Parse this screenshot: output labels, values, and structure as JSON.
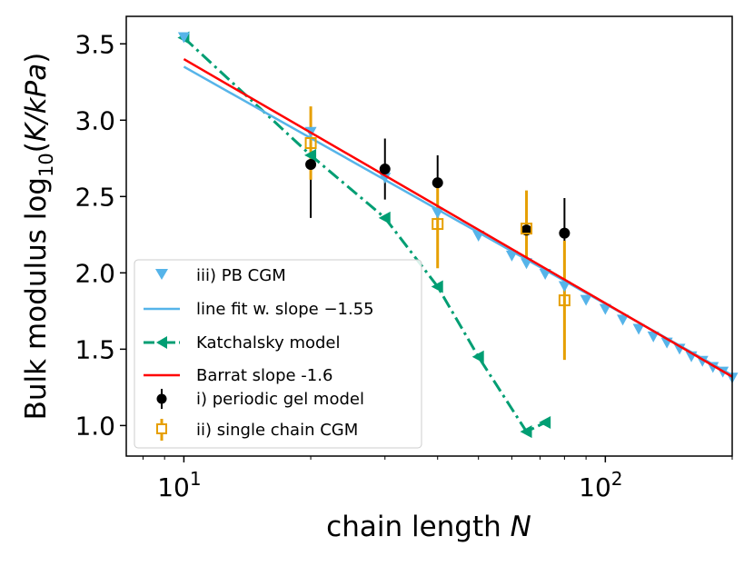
{
  "chart_data": {
    "type": "line",
    "title": "",
    "xlabel": {
      "prefix": "chain length ",
      "var": "N"
    },
    "ylabel": {
      "prefix": "Bulk modulus log",
      "sub": "10",
      "open": "(",
      "var": "K/kPa",
      "close": ")"
    },
    "xscale": "log",
    "xlim": [
      7.3,
      200
    ],
    "ylim": [
      0.8,
      3.68
    ],
    "xticks": [
      {
        "value": 10,
        "base": "10",
        "exp": "1"
      },
      {
        "value": 100,
        "base": "10",
        "exp": "2"
      }
    ],
    "yticks": [
      {
        "value": 1.0,
        "label": "1.0"
      },
      {
        "value": 1.5,
        "label": "1.5"
      },
      {
        "value": 2.0,
        "label": "2.0"
      },
      {
        "value": 2.5,
        "label": "2.5"
      },
      {
        "value": 3.0,
        "label": "3.0"
      },
      {
        "value": 3.5,
        "label": "3.5"
      }
    ],
    "legend_position": "lower-left",
    "series": [
      {
        "id": "pb",
        "name": "iii) PB CGM",
        "kind": "markers",
        "color": "#56B4E9",
        "marker": "triangle-down",
        "x": [
          10,
          20,
          30,
          40,
          50,
          60,
          65,
          72,
          80,
          90,
          100,
          110,
          120,
          130,
          140,
          150,
          160,
          170,
          180,
          190,
          200
        ],
        "y": [
          3.54,
          2.92,
          2.62,
          2.39,
          2.24,
          2.11,
          2.06,
          1.99,
          1.91,
          1.82,
          1.76,
          1.69,
          1.63,
          1.58,
          1.54,
          1.5,
          1.45,
          1.42,
          1.38,
          1.35,
          1.31
        ]
      },
      {
        "id": "fit",
        "name": "line fit w. slope −1.55",
        "kind": "line",
        "color": "#56B4E9",
        "x": [
          10,
          200
        ],
        "y": [
          3.35,
          1.33
        ]
      },
      {
        "id": "katch",
        "name": "Katchalsky model",
        "kind": "dashdot-markers",
        "color": "#009E73",
        "marker": "triangle-left",
        "x": [
          10,
          20,
          30,
          40,
          50,
          65,
          72
        ],
        "y": [
          3.54,
          2.77,
          2.36,
          1.91,
          1.45,
          0.96,
          1.02
        ]
      },
      {
        "id": "barrat",
        "name": "Barrat slope -1.6",
        "kind": "line",
        "color": "#FF0000",
        "x": [
          10,
          200
        ],
        "y": [
          3.4,
          1.32
        ]
      },
      {
        "id": "gel",
        "name": "i) periodic gel model",
        "kind": "errorbar",
        "color": "#000000",
        "marker": "circle",
        "x": [
          20,
          30,
          40,
          65,
          80
        ],
        "y": [
          2.71,
          2.68,
          2.59,
          2.28,
          2.26
        ],
        "yerr": [
          0.35,
          0.2,
          0.18,
          0.02,
          0.23
        ]
      },
      {
        "id": "single",
        "name": "ii) single chain CGM",
        "kind": "errorbar",
        "color": "#E69F00",
        "marker": "square-open",
        "x": [
          20,
          40,
          65,
          80
        ],
        "y": [
          2.85,
          2.32,
          2.29,
          1.82
        ],
        "yerr": [
          0.24,
          0.29,
          0.25,
          0.39
        ]
      }
    ]
  }
}
